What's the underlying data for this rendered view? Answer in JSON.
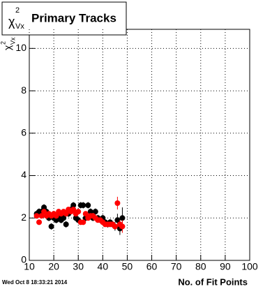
{
  "chart_data": {
    "type": "scatter",
    "title": {
      "symbol": "χ",
      "sup": "2",
      "sub": "Vx",
      "text": "Primary Tracks"
    },
    "ylabel": {
      "symbol": "χ",
      "sup": "2",
      "sub": "Vx"
    },
    "xlabel": "No. of Fit Points",
    "footer": "Wed Oct  8 18:33:21 2014",
    "x": [
      13,
      14,
      15,
      16,
      17,
      18,
      19,
      20,
      21,
      22,
      23,
      24,
      25,
      26,
      27,
      28,
      29,
      30,
      31,
      32,
      33,
      34,
      35,
      36,
      37,
      38,
      39,
      40,
      41,
      42,
      43,
      44,
      45,
      46,
      47,
      48
    ],
    "series": [
      {
        "color": "#000000",
        "values": [
          2.2,
          2.3,
          2.3,
          2.5,
          2.3,
          2.0,
          1.6,
          2.0,
          1.9,
          2.1,
          1.9,
          2.0,
          1.7,
          2.2,
          2.4,
          2.6,
          2.0,
          1.9,
          2.6,
          2.6,
          2.0,
          2.6,
          2.3,
          2.0,
          2.3,
          2.0,
          1.9,
          2.0,
          1.8,
          1.7,
          1.8,
          1.7,
          1.6,
          1.9,
          1.5,
          2.0
        ],
        "errors": [
          0.15,
          0.15,
          0.15,
          0.15,
          0.15,
          0.15,
          0.15,
          0.15,
          0.15,
          0.15,
          0.15,
          0.15,
          0.15,
          0.15,
          0.15,
          0.15,
          0.15,
          0.15,
          0.15,
          0.15,
          0.15,
          0.15,
          0.15,
          0.15,
          0.15,
          0.15,
          0.15,
          0.15,
          0.15,
          0.15,
          0.15,
          0.15,
          0.2,
          0.3,
          0.3,
          0.5
        ]
      },
      {
        "color": "#ff0000",
        "values": [
          2.1,
          1.8,
          2.1,
          2.3,
          2.1,
          2.2,
          2.1,
          2.2,
          2.1,
          2.3,
          2.2,
          2.3,
          2.2,
          2.4,
          2.3,
          2.4,
          2.2,
          2.3,
          1.8,
          1.8,
          2.2,
          2.0,
          2.1,
          2.1,
          2.0,
          1.9,
          1.9,
          1.8,
          1.7,
          1.7,
          1.7,
          1.7,
          1.6,
          2.7,
          1.7,
          1.6
        ],
        "errors": [
          0.1,
          0.1,
          0.1,
          0.1,
          0.1,
          0.1,
          0.1,
          0.1,
          0.1,
          0.1,
          0.1,
          0.1,
          0.1,
          0.1,
          0.1,
          0.1,
          0.1,
          0.1,
          0.1,
          0.1,
          0.1,
          0.1,
          0.1,
          0.1,
          0.1,
          0.1,
          0.1,
          0.1,
          0.1,
          0.1,
          0.1,
          0.1,
          0.15,
          0.3,
          0.2,
          0.3
        ]
      }
    ],
    "xlim": [
      10,
      100
    ],
    "ylim": [
      0,
      10.9
    ],
    "xticks": [
      10,
      20,
      30,
      40,
      50,
      60,
      70,
      80,
      90,
      100
    ],
    "yticks": [
      0,
      2,
      4,
      6,
      8,
      10
    ],
    "grid": true
  }
}
